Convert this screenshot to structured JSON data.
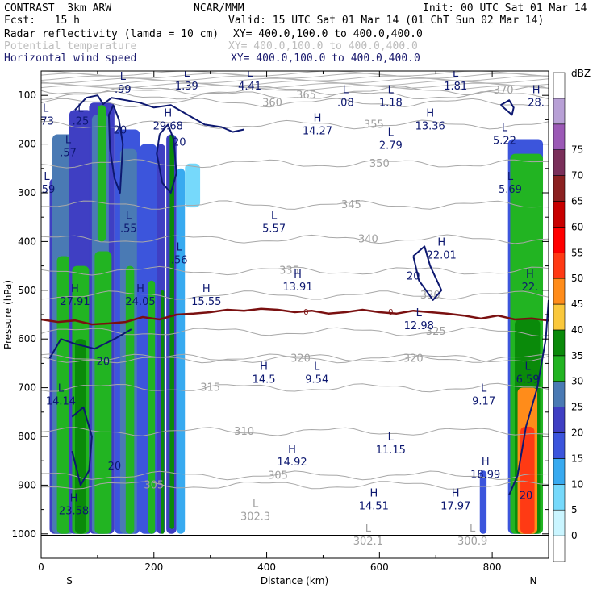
{
  "header": {
    "model": "CONTRAST  3km ARW",
    "center": "NCAR/MMM",
    "init": "Init: 00 UTC Sat 01 Mar 14",
    "fcst": "Fcst:   15 h",
    "valid": "Valid: 15 UTC Sat 01 Mar 14 (01 ChT Sun 02 Mar 14)",
    "fields": [
      {
        "name": "Radar reflectivity (lamda = 10 cm)",
        "xy": "XY= 400.0,100.0 to 400.0,400.0",
        "color": "#000000"
      },
      {
        "name": "Potential temperature",
        "xy": "XY= 400.0,100.0 to 400.0,400.0",
        "color": "#bdbdbd"
      },
      {
        "name": "Horizontal wind speed",
        "xy": "XY= 400.0,100.0 to 400.0,400.0",
        "color": "#1a1a6e"
      }
    ]
  },
  "chart_data": {
    "type": "heatmap",
    "title": "",
    "xlabel": "Distance (km)",
    "ylabel": "Pressure (hPa)",
    "xlim": [
      0,
      900
    ],
    "ylim": [
      1050,
      50
    ],
    "x_ticks": [
      0,
      200,
      400,
      600,
      800
    ],
    "y_ticks": [
      100,
      200,
      300,
      400,
      500,
      600,
      700,
      800,
      900,
      1000
    ],
    "x_end_labels": {
      "left": "S",
      "right": "N"
    },
    "colorbar": {
      "unit": "dBZ",
      "levels": [
        0,
        5,
        10,
        15,
        20,
        25,
        30,
        35,
        40,
        45,
        50,
        55,
        60,
        65,
        70,
        75
      ],
      "colors": [
        "#ffffff",
        "#caf5ff",
        "#76d9fb",
        "#38aaf0",
        "#3c55dc",
        "#3f3fc3",
        "#4a7ab4",
        "#22b422",
        "#0a8a0a",
        "#fac83c",
        "#ff8c1a",
        "#ff3a14",
        "#ff0000",
        "#c80000",
        "#8b2020",
        "#7a2f5a",
        "#9b59b6",
        "#b8a0d6",
        "#ffffff"
      ]
    },
    "reflectivity_cells": [
      {
        "x0": 15,
        "x1": 55,
        "p_top": 270,
        "p_bot": 1000,
        "dbz": 20
      },
      {
        "x0": 20,
        "x1": 60,
        "p_top": 180,
        "p_bot": 1000,
        "dbz": 25
      },
      {
        "x0": 28,
        "x1": 52,
        "p_top": 430,
        "p_bot": 1000,
        "dbz": 30
      },
      {
        "x0": 50,
        "x1": 90,
        "p_top": 130,
        "p_bot": 1000,
        "dbz": 20
      },
      {
        "x0": 55,
        "x1": 85,
        "p_top": 450,
        "p_bot": 1000,
        "dbz": 30
      },
      {
        "x0": 60,
        "x1": 80,
        "p_top": 600,
        "p_bot": 1000,
        "dbz": 35
      },
      {
        "x0": 85,
        "x1": 130,
        "p_top": 115,
        "p_bot": 1000,
        "dbz": 20
      },
      {
        "x0": 90,
        "x1": 120,
        "p_top": 140,
        "p_bot": 1000,
        "dbz": 25
      },
      {
        "x0": 95,
        "x1": 125,
        "p_top": 420,
        "p_bot": 1000,
        "dbz": 30
      },
      {
        "x0": 100,
        "x1": 115,
        "p_top": 120,
        "p_bot": 400,
        "dbz": 30
      },
      {
        "x0": 130,
        "x1": 175,
        "p_top": 170,
        "p_bot": 1000,
        "dbz": 15
      },
      {
        "x0": 140,
        "x1": 170,
        "p_top": 210,
        "p_bot": 1000,
        "dbz": 25
      },
      {
        "x0": 150,
        "x1": 165,
        "p_top": 450,
        "p_bot": 1000,
        "dbz": 30
      },
      {
        "x0": 175,
        "x1": 205,
        "p_top": 200,
        "p_bot": 1000,
        "dbz": 15
      },
      {
        "x0": 190,
        "x1": 202,
        "p_top": 480,
        "p_bot": 1000,
        "dbz": 30
      },
      {
        "x0": 205,
        "x1": 220,
        "p_top": 200,
        "p_bot": 1000,
        "dbz": 20
      },
      {
        "x0": 212,
        "x1": 218,
        "p_top": 500,
        "p_bot": 1000,
        "dbz": 35
      },
      {
        "x0": 222,
        "x1": 240,
        "p_top": 180,
        "p_bot": 1000,
        "dbz": 20
      },
      {
        "x0": 228,
        "x1": 236,
        "p_top": 180,
        "p_bot": 990,
        "dbz": 35
      },
      {
        "x0": 240,
        "x1": 255,
        "p_top": 250,
        "p_bot": 1000,
        "dbz": 10
      },
      {
        "x0": 255,
        "x1": 282,
        "p_top": 240,
        "p_bot": 330,
        "dbz": 5
      },
      {
        "x0": 778,
        "x1": 790,
        "p_top": 870,
        "p_bot": 1000,
        "dbz": 15
      },
      {
        "x0": 828,
        "x1": 890,
        "p_top": 190,
        "p_bot": 1000,
        "dbz": 15
      },
      {
        "x0": 832,
        "x1": 890,
        "p_top": 220,
        "p_bot": 1000,
        "dbz": 30
      },
      {
        "x0": 840,
        "x1": 885,
        "p_top": 560,
        "p_bot": 1000,
        "dbz": 35
      },
      {
        "x0": 845,
        "x1": 880,
        "p_top": 700,
        "p_bot": 1000,
        "dbz": 45
      },
      {
        "x0": 850,
        "x1": 875,
        "p_top": 780,
        "p_bot": 1000,
        "dbz": 50
      }
    ],
    "theta_contours": [
      {
        "label": "370",
        "x_label": 820,
        "p": 90
      },
      {
        "label": "365",
        "x_label": 470,
        "p": 100
      },
      {
        "label": "360",
        "x_label": 410,
        "p": 115
      },
      {
        "label": "355",
        "x_label": 590,
        "p": 160
      },
      {
        "label": "350",
        "x_label": 600,
        "p": 240
      },
      {
        "label": "345",
        "x_label": 550,
        "p": 325
      },
      {
        "label": "340",
        "x_label": 580,
        "p": 395
      },
      {
        "label": "335",
        "x_label": 440,
        "p": 460
      },
      {
        "label": "330",
        "x_label": 690,
        "p": 510
      },
      {
        "label": "325",
        "x_label": 700,
        "p": 585
      },
      {
        "label": "320",
        "x_label": 460,
        "p": 640
      },
      {
        "label": "320",
        "x_label": 660,
        "p": 640
      },
      {
        "label": "315",
        "x_label": 300,
        "p": 700
      },
      {
        "label": "310",
        "x_label": 360,
        "p": 790
      },
      {
        "label": "305",
        "x_label": 420,
        "p": 880
      },
      {
        "label": "305",
        "x_label": 200,
        "p": 900
      }
    ],
    "theta_extrema": [
      {
        "type": "L",
        "value": "302.3",
        "x": 380,
        "p": 965
      },
      {
        "type": "L",
        "value": "302.1",
        "x": 580,
        "p": 1015
      },
      {
        "type": "L",
        "value": "300.9",
        "x": 765,
        "p": 1015
      }
    ],
    "zero_line": {
      "label": "0",
      "x": [
        0,
        30,
        60,
        90,
        120,
        150,
        180,
        210,
        240,
        270,
        300,
        330,
        360,
        390,
        420,
        450,
        480,
        510,
        540,
        570,
        600,
        630,
        660,
        690,
        720,
        750,
        780,
        810,
        840,
        870,
        900
      ],
      "p": [
        560,
        565,
        562,
        570,
        568,
        565,
        555,
        560,
        550,
        548,
        545,
        540,
        542,
        538,
        540,
        545,
        542,
        548,
        545,
        540,
        545,
        548,
        542,
        545,
        548,
        552,
        558,
        552,
        560,
        558,
        562
      ]
    },
    "wind_contours": [
      {
        "label": "20",
        "x": [
          60,
          80,
          100,
          110,
          125,
          150,
          175,
          200,
          230,
          260,
          290,
          320,
          340,
          360
        ],
        "p": [
          130,
          105,
          100,
          118,
          105,
          110,
          115,
          125,
          120,
          140,
          160,
          165,
          175,
          170
        ]
      },
      {
        "label": "20",
        "x": [
          120,
          128,
          138,
          145,
          140,
          130,
          122,
          120
        ],
        "p": [
          140,
          120,
          150,
          200,
          300,
          270,
          210,
          140
        ]
      },
      {
        "label": "20",
        "x": [
          210,
          225,
          235,
          240,
          230,
          215,
          205,
          210
        ],
        "p": [
          180,
          160,
          190,
          260,
          300,
          280,
          220,
          180
        ]
      },
      {
        "label": "20",
        "x": [
          660,
          680,
          690,
          710,
          695,
          670,
          660
        ],
        "p": [
          430,
          410,
          450,
          500,
          520,
          480,
          430
        ]
      },
      {
        "label": "20",
        "x": [
          55,
          75,
          90,
          85,
          70,
          55
        ],
        "p": [
          760,
          740,
          800,
          870,
          900,
          830
        ]
      },
      {
        "label": "20",
        "x": [
          15,
          35,
          60,
          95,
          130,
          160
        ],
        "p": [
          640,
          600,
          610,
          620,
          600,
          580
        ]
      },
      {
        "label": "20",
        "x": [
          830,
          845,
          860,
          880,
          895,
          900
        ],
        "p": [
          920,
          880,
          780,
          700,
          600,
          520
        ]
      },
      {
        "label": "20",
        "x": [
          815,
          830,
          838,
          835,
          825,
          815
        ],
        "p": [
          120,
          110,
          125,
          140,
          130,
          120
        ]
      }
    ],
    "wind_extrema": [
      {
        "type": "L",
        "value": ".99",
        "x": 145,
        "p": 85
      },
      {
        "type": "L",
        "value": "1.39",
        "x": 258,
        "p": 78
      },
      {
        "type": "L",
        "value": "4.41",
        "x": 370,
        "p": 78
      },
      {
        "type": "L",
        "value": ".08",
        "x": 540,
        "p": 112
      },
      {
        "type": "L",
        "value": "1.18",
        "x": 620,
        "p": 112
      },
      {
        "type": "L",
        "value": "1.81",
        "x": 735,
        "p": 78
      },
      {
        "type": "H",
        "value": "28.",
        "x": 878,
        "p": 112
      },
      {
        "type": "L",
        "value": ".73",
        "x": 8,
        "p": 150
      },
      {
        "type": "L",
        "value": ".25",
        "x": 70,
        "p": 150
      },
      {
        "type": "H",
        "value": "29.68",
        "x": 225,
        "p": 160
      },
      {
        "type": "H",
        "value": "14.27",
        "x": 490,
        "p": 170
      },
      {
        "type": "H",
        "value": "13.36",
        "x": 690,
        "p": 160
      },
      {
        "type": "L",
        "value": "2.79",
        "x": 620,
        "p": 200
      },
      {
        "type": "L",
        "value": "5.22",
        "x": 822,
        "p": 190
      },
      {
        "type": "L",
        "value": ".57",
        "x": 48,
        "p": 215
      },
      {
        "type": "L",
        "value": "5.69",
        "x": 832,
        "p": 290
      },
      {
        "type": "L",
        "value": ".59",
        "x": 10,
        "p": 290
      },
      {
        "type": "L",
        "value": "5.57",
        "x": 413,
        "p": 370
      },
      {
        "type": "L",
        "value": ".55",
        "x": 155,
        "p": 370
      },
      {
        "type": "L",
        "value": ".56",
        "x": 245,
        "p": 435
      },
      {
        "type": "H",
        "value": "22.01",
        "x": 710,
        "p": 425
      },
      {
        "type": "H",
        "value": "13.91",
        "x": 455,
        "p": 490
      },
      {
        "type": "H",
        "value": "22.",
        "x": 867,
        "p": 490
      },
      {
        "type": "H",
        "value": "27.91",
        "x": 60,
        "p": 520
      },
      {
        "type": "H",
        "value": "24.05",
        "x": 176,
        "p": 520
      },
      {
        "type": "H",
        "value": "15.55",
        "x": 293,
        "p": 520
      },
      {
        "type": "L",
        "value": "12.98",
        "x": 670,
        "p": 570
      },
      {
        "type": "H",
        "value": "14.5",
        "x": 395,
        "p": 680
      },
      {
        "type": "L",
        "value": "9.54",
        "x": 489,
        "p": 680
      },
      {
        "type": "L",
        "value": "6.59",
        "x": 863,
        "p": 680
      },
      {
        "type": "L",
        "value": "14.14",
        "x": 35,
        "p": 725
      },
      {
        "type": "L",
        "value": "9.17",
        "x": 785,
        "p": 725
      },
      {
        "type": "L",
        "value": "11.15",
        "x": 620,
        "p": 825
      },
      {
        "type": "H",
        "value": "14.92",
        "x": 445,
        "p": 850
      },
      {
        "type": "H",
        "value": "18.99",
        "x": 788,
        "p": 875
      },
      {
        "type": "H",
        "value": "14.51",
        "x": 590,
        "p": 940
      },
      {
        "type": "H",
        "value": "17.97",
        "x": 735,
        "p": 940
      },
      {
        "type": "H",
        "value": "23.58",
        "x": 58,
        "p": 950
      }
    ]
  }
}
